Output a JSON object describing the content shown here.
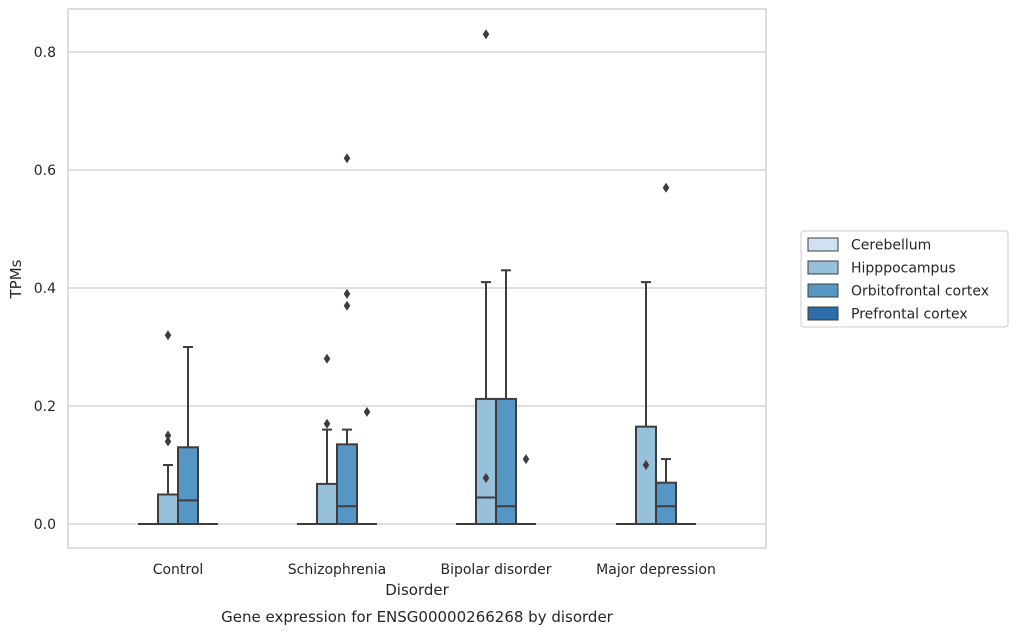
{
  "chart_data": {
    "type": "box",
    "title": "",
    "caption": "Gene expression for ENSG00000266268 by disorder",
    "xlabel": "Disorder",
    "ylabel": "TPMs",
    "ylim": [
      -0.04,
      0.875
    ],
    "yticks": [
      0.0,
      0.2,
      0.4,
      0.6,
      0.8
    ],
    "ytick_labels": [
      "0.0",
      "0.2",
      "0.4",
      "0.6",
      "0.8"
    ],
    "grid": "horizontal",
    "legend_position": "right",
    "categories": [
      "Control",
      "Schizophrenia",
      "Bipolar disorder",
      "Major depression"
    ],
    "series": [
      {
        "name": "Cerebellum",
        "color": "#d0e1f1",
        "boxes": [
          {
            "q1": 0,
            "median": 0,
            "q3": 0,
            "whisker_low": 0,
            "whisker_high": 0,
            "outliers": []
          },
          {
            "q1": 0,
            "median": 0,
            "q3": 0,
            "whisker_low": 0,
            "whisker_high": 0,
            "outliers": []
          },
          {
            "q1": 0,
            "median": 0,
            "q3": 0,
            "whisker_low": 0,
            "whisker_high": 0,
            "outliers": []
          },
          {
            "q1": 0,
            "median": 0,
            "q3": 0,
            "whisker_low": 0,
            "whisker_high": 0,
            "outliers": []
          }
        ]
      },
      {
        "name": "Hipppocampus",
        "color": "#97c0db",
        "boxes": [
          {
            "q1": 0,
            "median": 0,
            "q3": 0.05,
            "whisker_low": 0,
            "whisker_high": 0.1,
            "outliers": [
              0.14,
              0.15,
              0.32
            ]
          },
          {
            "q1": 0,
            "median": 0,
            "q3": 0.068,
            "whisker_low": 0,
            "whisker_high": 0.16,
            "outliers": [
              0.17,
              0.28
            ]
          },
          {
            "q1": 0,
            "median": 0.045,
            "q3": 0.212,
            "whisker_low": 0,
            "whisker_high": 0.41,
            "outliers": [
              0.078,
              0.83
            ]
          },
          {
            "q1": 0,
            "median": 0,
            "q3": 0.165,
            "whisker_low": 0,
            "whisker_high": 0.41,
            "outliers": [
              0.1
            ]
          }
        ]
      },
      {
        "name": "Orbitofrontal cortex",
        "color": "#5596c4",
        "boxes": [
          {
            "q1": 0,
            "median": 0.04,
            "q3": 0.13,
            "whisker_low": 0,
            "whisker_high": 0.3,
            "outliers": []
          },
          {
            "q1": 0,
            "median": 0.03,
            "q3": 0.135,
            "whisker_low": 0,
            "whisker_high": 0.16,
            "outliers": [
              0.37,
              0.39,
              0.62
            ]
          },
          {
            "q1": 0,
            "median": 0.03,
            "q3": 0.212,
            "whisker_low": 0,
            "whisker_high": 0.43,
            "outliers": []
          },
          {
            "q1": 0,
            "median": 0.03,
            "q3": 0.07,
            "whisker_low": 0,
            "whisker_high": 0.11,
            "outliers": [
              0.57
            ]
          }
        ]
      },
      {
        "name": "Prefrontal cortex",
        "color": "#2c6ca8",
        "boxes": [
          {
            "q1": 0,
            "median": 0,
            "q3": 0,
            "whisker_low": 0,
            "whisker_high": 0,
            "outliers": []
          },
          {
            "q1": 0,
            "median": 0,
            "q3": 0,
            "whisker_low": 0,
            "whisker_high": 0,
            "outliers": [
              0.19
            ]
          },
          {
            "q1": 0,
            "median": 0,
            "q3": 0,
            "whisker_low": 0,
            "whisker_high": 0,
            "outliers": [
              0.11
            ]
          },
          {
            "q1": 0,
            "median": 0,
            "q3": 0,
            "whisker_low": 0,
            "whisker_high": 0,
            "outliers": []
          }
        ]
      }
    ]
  }
}
